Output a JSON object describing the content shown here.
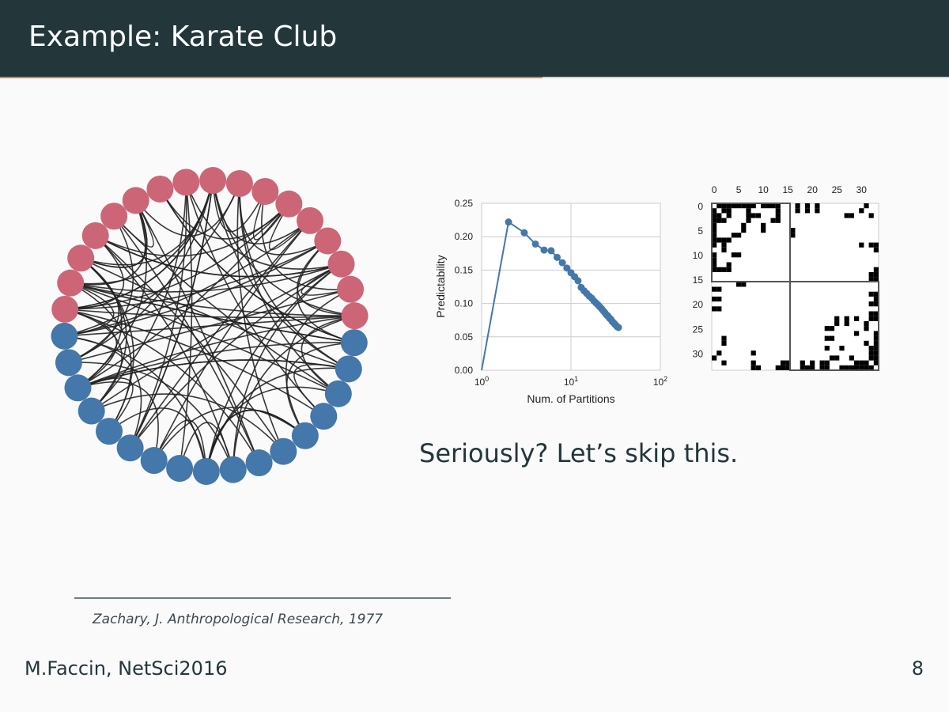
{
  "header": {
    "title": "Example: Karate Club"
  },
  "subtitle": "Seriously? Let’s skip this.",
  "citation": "Zachary, J. Anthropological Research, 1977",
  "footer": {
    "author": "M.Faccin, NetSci2016",
    "page": "8"
  },
  "colors": {
    "red_group": "#cc6677",
    "blue_group": "#4477aa",
    "edge": "#222222",
    "accent": "#eb811b"
  },
  "network": {
    "node_count": 34,
    "red_count": 17,
    "blue_count": 17
  },
  "chart_data": {
    "type": "line",
    "x": [
      1,
      2,
      3,
      4,
      5,
      6,
      7,
      8,
      9,
      10,
      11,
      12,
      13,
      14,
      15,
      16,
      17,
      18,
      19,
      20,
      21,
      22,
      23,
      24,
      25,
      26,
      27,
      28,
      29,
      30,
      31,
      32,
      33,
      34
    ],
    "series": [
      {
        "values": [
          0.0,
          0.222,
          0.206,
          0.189,
          0.18,
          0.179,
          0.169,
          0.161,
          0.153,
          0.146,
          0.14,
          0.134,
          0.124,
          0.119,
          0.115,
          0.111,
          0.108,
          0.104,
          0.101,
          0.098,
          0.095,
          0.092,
          0.089,
          0.086,
          0.083,
          0.081,
          0.078,
          0.076,
          0.073,
          0.071,
          0.069,
          0.067,
          0.065,
          0.064
        ]
      }
    ],
    "xlabel": "Num. of Partitions",
    "ylabel": "Predictability",
    "xscale": "log",
    "xlim": [
      1,
      100
    ],
    "ylim": [
      0,
      0.25
    ],
    "xticks": [
      {
        "base": "10",
        "exp": "0"
      },
      {
        "base": "10",
        "exp": "1"
      },
      {
        "base": "10",
        "exp": "2"
      }
    ],
    "yticks": [
      "0.00",
      "0.05",
      "0.10",
      "0.15",
      "0.20",
      "0.25"
    ],
    "grid": true
  },
  "matrix": {
    "xticks": [
      "0",
      "5",
      "10",
      "15",
      "20",
      "25",
      "30"
    ],
    "yticks": [
      "0",
      "5",
      "10",
      "15",
      "20",
      "25",
      "30"
    ]
  }
}
